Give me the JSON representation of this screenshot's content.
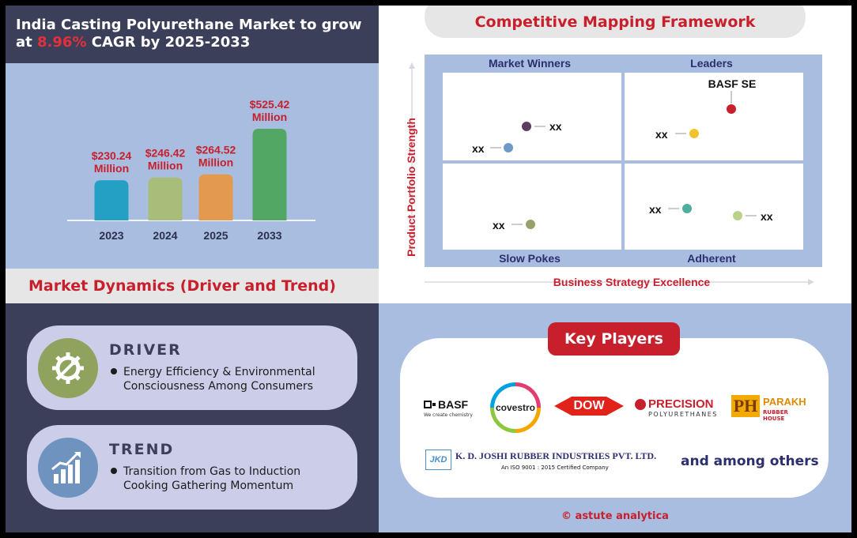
{
  "title": {
    "line1": "India Casting Polyurethane Market to grow",
    "line2_prefix": "at ",
    "cagr": "8.96%",
    "line2_suffix": " CAGR by 2025-2033",
    "accent_color": "#e3303a"
  },
  "chart_data": {
    "type": "bar",
    "categories": [
      "2023",
      "2024",
      "2025",
      "2033"
    ],
    "values": [
      230.24,
      246.42,
      264.52,
      525.42
    ],
    "value_labels": [
      [
        "$230.24",
        "Million"
      ],
      [
        "$246.42",
        "Million"
      ],
      [
        "$264.52",
        "Million"
      ],
      [
        "$525.42",
        "Million"
      ]
    ],
    "colors": [
      "#23a0c4",
      "#a9bd7b",
      "#e39a4f",
      "#52a764"
    ],
    "label_color": "#c81f2c",
    "ylim": [
      0,
      525.42
    ]
  },
  "dynamics": {
    "heading": "Market Dynamics (Driver and Trend)",
    "driver": {
      "title": "DRIVER",
      "text": "Energy Efficiency & Environmental Consciousness Among Consumers",
      "icon": "gear-wrench-icon",
      "icon_color": "#8fa35e"
    },
    "trend": {
      "title": "TREND",
      "text": "Transition from Gas to Induction Cooking Gathering Momentum",
      "icon": "growth-chart-icon",
      "icon_color": "#6f93bf"
    }
  },
  "competitive": {
    "title": "Competitive Mapping Framework",
    "quadrants": {
      "top_left": "Market Winners",
      "top_right": "Leaders",
      "bottom_left": "Slow Pokes",
      "bottom_right": "Adherent"
    },
    "y_axis": "Product Portfolio Strength",
    "x_axis": "Business Strategy Excellence",
    "points": [
      {
        "label": "xx",
        "color": "#5a3f5e"
      },
      {
        "label": "xx",
        "color": "#6f9ac8"
      },
      {
        "label": "BASF SE",
        "color": "#c81f2c"
      },
      {
        "label": "xx",
        "color": "#f2c12e"
      },
      {
        "label": "xx",
        "color": "#9aa06a"
      },
      {
        "label": "xx",
        "color": "#4fae9e"
      },
      {
        "label": "xx",
        "color": "#b9d18b"
      }
    ]
  },
  "key_players": {
    "heading": "Key Players",
    "logos": {
      "basf_name": "BASF",
      "basf_tagline": "We create chemistry",
      "covestro": "covestro",
      "dow": "DOW",
      "precision_name": "PRECISION",
      "precision_sub": "POLYURETHANES",
      "parakh_mark": "PH",
      "parakh_name": "PARAKH",
      "parakh_sub": "RUBBER HOUSE",
      "kdj_mark": "JKD",
      "kdj_name": "K. D. JOSHI RUBBER INDUSTRIES PVT. LTD.",
      "kdj_sub": "An ISO 9001 : 2015 Certified Company"
    },
    "others": "and among others",
    "copyright": "© astute analytica"
  }
}
